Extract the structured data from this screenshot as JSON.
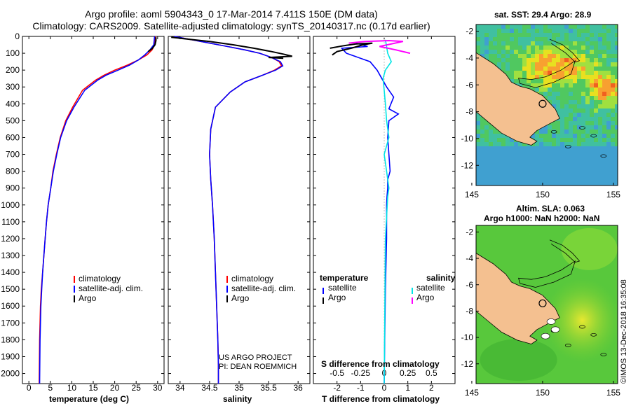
{
  "header": {
    "title_line1": "Argo profile: aoml 5904343_0 17-Mar-2014 7.411S 150E (DM data)",
    "title_line2": "Climatology: CARS2009. Satellite-adjusted climatology: synTS_20140317.nc (0.17d earlier)"
  },
  "colors": {
    "climatology": "#ff0000",
    "satellite": "#0000ff",
    "argo": "#000000",
    "sat_salinity": "#00e5e5",
    "argo_salinity": "#ff00ff",
    "land": "#f4c090"
  },
  "footer": {
    "project_line1": "US ARGO PROJECT",
    "project_line2": "PI: DEAN ROEMMICH",
    "copyright": "©IMOS 13-Dec-2018 16:35:08"
  },
  "depth_axis": {
    "ticks": [
      "0",
      "100",
      "200",
      "300",
      "400",
      "500",
      "600",
      "700",
      "800",
      "900",
      "1000",
      "1100",
      "1200",
      "1300",
      "1400",
      "1500",
      "1600",
      "1700",
      "1800",
      "1900",
      "2000"
    ],
    "range": [
      0,
      2060
    ]
  },
  "chart_data": [
    {
      "type": "line",
      "id": "temperature",
      "xlabel": "temperature (deg C)",
      "ylabel": "depth",
      "xlim": [
        -1.5,
        31.5
      ],
      "ylim": [
        2060,
        0
      ],
      "xticks": [
        "0",
        "5",
        "10",
        "15",
        "20",
        "25",
        "30"
      ],
      "legend": [
        "climatology",
        "satellite-adj. clim.",
        "Argo"
      ],
      "series": [
        {
          "name": "climatology",
          "x": [
            29.5,
            29.4,
            29.3,
            28.7,
            27.5,
            25.5,
            23,
            20,
            17.5,
            15.5,
            12.5,
            10.2,
            8.6,
            7.3,
            6.4,
            5.6,
            5.1,
            4.5,
            4.1,
            3.8,
            3.5,
            3.2,
            2.9,
            2.7,
            2.5,
            2.4
          ],
          "y": [
            0,
            25,
            50,
            80,
            110,
            140,
            170,
            200,
            230,
            260,
            320,
            420,
            500,
            600,
            700,
            800,
            900,
            1000,
            1100,
            1200,
            1300,
            1400,
            1500,
            1600,
            1800,
            2060
          ]
        },
        {
          "name": "satellite-adj. clim.",
          "x": [
            29.3,
            29.2,
            29.1,
            28.2,
            27,
            25.5,
            23.5,
            20.8,
            18,
            16,
            13,
            10.5,
            8.8,
            7.4,
            6.5,
            5.7,
            5.1,
            4.5,
            4.1,
            3.8,
            3.5,
            3.2,
            3,
            2.8,
            2.6,
            2.5
          ],
          "y": [
            0,
            25,
            50,
            80,
            110,
            140,
            170,
            200,
            230,
            260,
            320,
            420,
            500,
            600,
            700,
            800,
            900,
            1000,
            1100,
            1200,
            1300,
            1400,
            1500,
            1600,
            1800,
            2060
          ]
        },
        {
          "name": "Argo",
          "x": [
            29.6,
            29.6,
            29.4,
            28.8,
            27.8
          ],
          "y": [
            5,
            25,
            50,
            70,
            90
          ]
        }
      ]
    },
    {
      "type": "line",
      "id": "salinity",
      "xlabel": "salinity",
      "ylabel": "depth",
      "xlim": [
        33.8,
        36.2
      ],
      "ylim": [
        2060,
        0
      ],
      "xticks": [
        "34",
        "34.5",
        "35",
        "35.5",
        "36"
      ],
      "legend": [
        "climatology",
        "satellite-adj. clim.",
        "Argo"
      ],
      "series": [
        {
          "name": "climatology",
          "x": [
            33.9,
            34.2,
            34.5,
            34.8,
            35.1,
            35.35,
            35.55,
            35.68,
            35.72,
            35.6,
            35.4,
            35.1,
            34.85,
            34.6,
            34.52,
            34.5,
            34.52,
            34.55,
            34.58,
            34.6,
            34.62,
            34.64,
            34.65,
            34.65
          ],
          "y": [
            0,
            20,
            40,
            60,
            80,
            100,
            125,
            150,
            175,
            200,
            230,
            270,
            330,
            420,
            550,
            700,
            850,
            1000,
            1200,
            1400,
            1600,
            1800,
            1950,
            2060
          ]
        },
        {
          "name": "satellite-adj. clim.",
          "x": [
            33.9,
            34.2,
            34.5,
            34.8,
            35.1,
            35.35,
            35.55,
            35.7,
            35.74,
            35.62,
            35.4,
            35.1,
            34.85,
            34.6,
            34.52,
            34.5,
            34.52,
            34.55,
            34.58,
            34.6,
            34.62,
            34.64,
            34.65,
            34.65
          ],
          "y": [
            0,
            20,
            40,
            60,
            80,
            100,
            125,
            150,
            175,
            200,
            230,
            270,
            330,
            420,
            550,
            700,
            850,
            1000,
            1200,
            1400,
            1600,
            1800,
            1950,
            2060
          ]
        },
        {
          "name": "Argo",
          "x": [
            33.85,
            34.1,
            34.5,
            34.9,
            35.25,
            35.55,
            35.75,
            35.9,
            35.5,
            35.75
          ],
          "y": [
            5,
            15,
            30,
            50,
            70,
            90,
            105,
            118,
            125,
            130
          ]
        }
      ]
    },
    {
      "type": "line",
      "id": "difference",
      "xlabel": "T difference from climatology",
      "xlabel2": "S difference from climatology",
      "ylabel": "depth",
      "xlim": [
        -3,
        3
      ],
      "ylim": [
        2060,
        0
      ],
      "xticks": [
        "-2",
        "-1",
        "0",
        "1",
        "2"
      ],
      "sticks": [
        "-0.5",
        "-0.25",
        "0",
        "0.25",
        "0.5"
      ],
      "legend_temperature": [
        "temperature",
        "satellite",
        "Argo"
      ],
      "legend_salinity": [
        "salinity",
        "satellite",
        "Argo"
      ],
      "series": [
        {
          "name": "temperature satellite",
          "x": [
            -1.2,
            -0.7,
            -1.8,
            -1.6,
            -0.6,
            -0.3,
            -0.1,
            0.1,
            0.4,
            0.2,
            0.6,
            0.2,
            0.15,
            0.2,
            0.25,
            0.15,
            0.15,
            0.12,
            0.1,
            0.1,
            0.05,
            0.02,
            0.0
          ],
          "y": [
            40,
            60,
            70,
            100,
            150,
            200,
            250,
            300,
            360,
            430,
            460,
            500,
            600,
            700,
            800,
            850,
            900,
            950,
            1000,
            1200,
            1500,
            1800,
            2060
          ]
        },
        {
          "name": "temperature Argo",
          "x": [
            -2.3,
            -1.7,
            -1.2,
            -0.5,
            -0.9,
            -1.4,
            -2.0,
            -2.2
          ],
          "y": [
            70,
            55,
            45,
            40,
            50,
            70,
            90,
            110
          ]
        },
        {
          "name": "salinity satellite",
          "x": [
            0.05,
            0.1,
            0.15,
            0.3,
            0.05,
            -0.05,
            0.0,
            0.05,
            0.1,
            0.2,
            0.0,
            0.1,
            0.2,
            0.15,
            0.05,
            0.0
          ],
          "y": [
            20,
            60,
            100,
            150,
            200,
            250,
            320,
            400,
            500,
            600,
            700,
            800,
            900,
            950,
            1200,
            2060
          ]
        },
        {
          "name": "salinity Argo",
          "x": [
            -1.5,
            -0.8,
            0.2,
            0.8,
            -0.2,
            0.5,
            1.1
          ],
          "y": [
            40,
            30,
            25,
            30,
            60,
            80,
            100
          ]
        }
      ]
    }
  ],
  "maps": [
    {
      "id": "sst-map",
      "title": "sat. SST: 29.4 Argo: 28.9",
      "title2": "",
      "xticks": [
        "145",
        "150",
        "155"
      ],
      "yticks": [
        "-2",
        "-4",
        "-6",
        "-8",
        "-10",
        "-12"
      ]
    },
    {
      "id": "sla-map",
      "title": "Altim. SLA: 0.063",
      "title2": "Argo h1000: NaN h2000: NaN",
      "xticks": [
        "145",
        "150",
        "155"
      ],
      "yticks": [
        "-2",
        "-4",
        "-6",
        "-8",
        "-10",
        "-12"
      ]
    }
  ]
}
